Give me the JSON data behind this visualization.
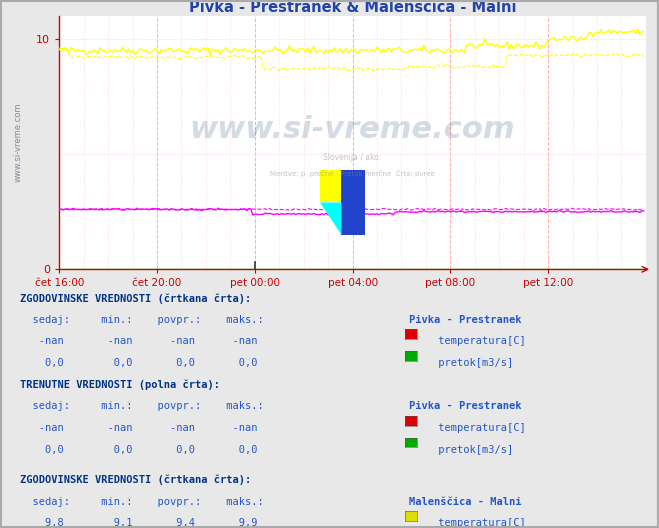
{
  "title": "Pivka - Prestranek & Malenščica - Malni",
  "title_color": "#2244aa",
  "bg_color": "#e8e8e8",
  "plot_bg_color": "#ffffff",
  "xlim": [
    0,
    288
  ],
  "ylim": [
    0,
    11
  ],
  "xtick_labels": [
    "čet 16:00",
    "čet 20:00",
    "pet 00:00",
    "pet 04:00",
    "pet 08:00",
    "pet 12:00"
  ],
  "xtick_positions": [
    0,
    48,
    96,
    144,
    192,
    240
  ],
  "axis_color": "#cc0000",
  "watermark_text": "www.si-vreme.com",
  "watermark_color": "#1a3a6e",
  "text_color": "#2255cc",
  "section1_row1_color": "#dd0000",
  "section1_row2_color": "#00aa00",
  "section2_row1_color": "#dd0000",
  "section2_row2_color": "#00aa00",
  "section3_row1_color": "#dddd00",
  "section3_row2_color": "#dd00dd",
  "section4_row1_color": "#dddd00",
  "section4_row2_color": "#dd00dd"
}
